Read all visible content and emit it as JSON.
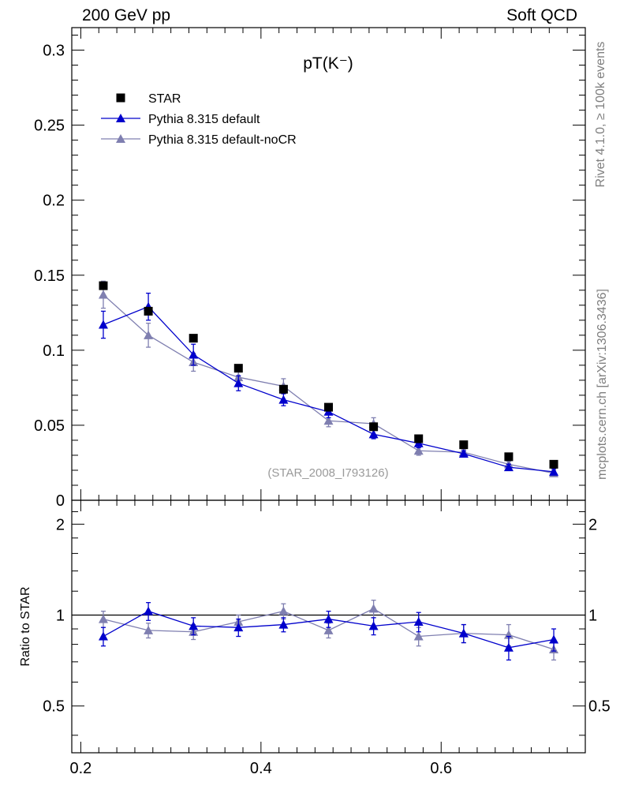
{
  "header": {
    "left": "200 GeV pp",
    "right": "Soft QCD"
  },
  "side_labels": {
    "rivet": "Rivet 4.1.0, ≥ 100k events",
    "mcplots": "mcplots.cern.ch [arXiv:1306.3436]"
  },
  "colors": {
    "star": "#000000",
    "default": "#0000cc",
    "nocr": "#7f7fb0",
    "ref_grey": "#9a9a9a"
  },
  "chart_data": [
    {
      "type": "scatter",
      "title": "pT(K⁻)",
      "reference_label": "(STAR_2008_I793126)",
      "xlabel": "",
      "ylabel": "",
      "xlim": [
        0.19,
        0.76
      ],
      "ylim": [
        0,
        0.315
      ],
      "y_ticks": [
        0,
        0.05,
        0.1,
        0.15,
        0.2,
        0.25,
        0.3
      ],
      "y_tick_labels": [
        "0",
        "0.05",
        "0.1",
        "0.15",
        "0.2",
        "0.25",
        "0.3"
      ],
      "legend_position": "top-left",
      "x": [
        0.225,
        0.275,
        0.325,
        0.375,
        0.425,
        0.475,
        0.525,
        0.575,
        0.625,
        0.675,
        0.725
      ],
      "series": [
        {
          "name": "STAR",
          "marker": "square",
          "line": false,
          "color": "#000000",
          "values": [
            0.143,
            0.126,
            0.108,
            0.088,
            0.074,
            0.062,
            0.049,
            0.041,
            0.037,
            0.029,
            0.024
          ],
          "errors": [
            0,
            0,
            0,
            0,
            0,
            0,
            0,
            0,
            0,
            0,
            0
          ]
        },
        {
          "name": "Pythia 8.315 default",
          "marker": "triangle",
          "line": true,
          "color": "#0000cc",
          "values": [
            0.117,
            0.129,
            0.097,
            0.078,
            0.067,
            0.059,
            0.044,
            0.038,
            0.031,
            0.022,
            0.019
          ],
          "errors": [
            0.009,
            0.009,
            0.007,
            0.005,
            0.004,
            0.004,
            0.003,
            0.003,
            0.002,
            0.002,
            0.002
          ]
        },
        {
          "name": "Pythia 8.315 default-noCR",
          "marker": "triangle",
          "line": true,
          "color": "#7f7fb0",
          "values": [
            0.137,
            0.11,
            0.092,
            0.082,
            0.076,
            0.053,
            0.051,
            0.033,
            0.032,
            0.024,
            0.018
          ],
          "errors": [
            0.009,
            0.008,
            0.006,
            0.005,
            0.005,
            0.004,
            0.004,
            0.003,
            0.002,
            0.002,
            0.002
          ]
        }
      ]
    },
    {
      "type": "scatter",
      "title": "",
      "xlabel": "",
      "ylabel": "Ratio to STAR",
      "xlim": [
        0.19,
        0.76
      ],
      "ylim": [
        0.35,
        2.4
      ],
      "log_y": true,
      "y_ticks": [
        0.5,
        1,
        2
      ],
      "y_tick_labels": [
        "0.5",
        "1",
        "2"
      ],
      "x_ticks": [
        0.2,
        0.4,
        0.6
      ],
      "x_tick_labels": [
        "0.2",
        "0.4",
        "0.6"
      ],
      "reference_line": 1,
      "x": [
        0.225,
        0.275,
        0.325,
        0.375,
        0.425,
        0.475,
        0.525,
        0.575,
        0.625,
        0.675,
        0.725
      ],
      "series": [
        {
          "name": "Pythia 8.315 default",
          "color": "#0000cc",
          "values": [
            0.85,
            1.03,
            0.92,
            0.91,
            0.93,
            0.97,
            0.92,
            0.95,
            0.87,
            0.78,
            0.83
          ],
          "errors": [
            0.06,
            0.07,
            0.06,
            0.06,
            0.05,
            0.06,
            0.06,
            0.07,
            0.06,
            0.07,
            0.07
          ]
        },
        {
          "name": "Pythia 8.315 default-noCR",
          "color": "#7f7fb0",
          "values": [
            0.97,
            0.89,
            0.88,
            0.95,
            1.03,
            0.89,
            1.05,
            0.85,
            0.87,
            0.86,
            0.77
          ],
          "errors": [
            0.06,
            0.05,
            0.05,
            0.05,
            0.06,
            0.05,
            0.07,
            0.06,
            0.06,
            0.07,
            0.06
          ]
        }
      ]
    }
  ]
}
